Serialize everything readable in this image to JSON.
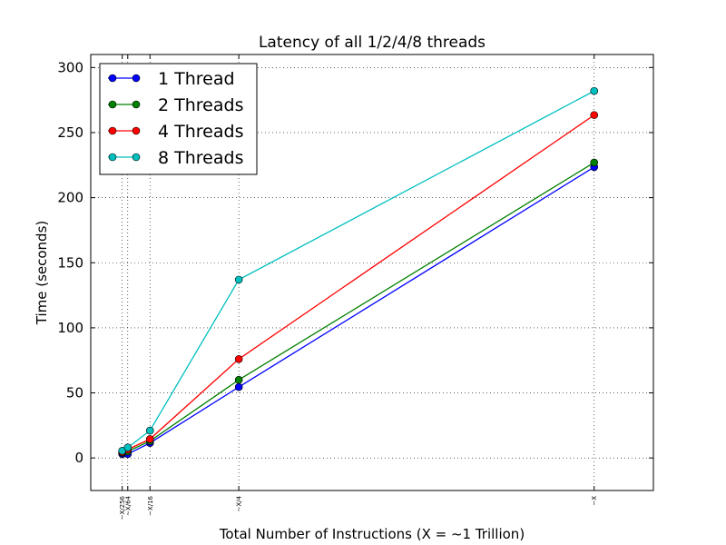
{
  "chart_data": {
    "type": "line",
    "title": "Latency of all 1/2/4/8 threads",
    "xlabel": "Total Number of Instructions (X = ~1 Trillion)",
    "ylabel": "Time (seconds)",
    "x": [
      0.00390625,
      0.015625,
      0.0625,
      0.25,
      1
    ],
    "xtick_labels": [
      "~X/256",
      "~X/64",
      "~X/16",
      "~X/4",
      "~X"
    ],
    "xlim": [
      -0.0625,
      1.125
    ],
    "ylim": [
      -25,
      310
    ],
    "yticks": [
      0,
      50,
      100,
      150,
      200,
      250,
      300
    ],
    "grid": true,
    "legend_position": "top-left",
    "series": [
      {
        "name": "1 Thread",
        "color": "#0000ff",
        "values": [
          3,
          3,
          11.5,
          54.5,
          223.5
        ]
      },
      {
        "name": "2 Threads",
        "color": "#008000",
        "values": [
          4,
          5,
          13,
          60,
          227
        ]
      },
      {
        "name": "4 Threads",
        "color": "#ff0000",
        "values": [
          4.5,
          6.5,
          14.5,
          76,
          263.5
        ]
      },
      {
        "name": "8 Threads",
        "color": "#00bfbf",
        "values": [
          5.5,
          8,
          21,
          137,
          282
        ]
      }
    ]
  }
}
